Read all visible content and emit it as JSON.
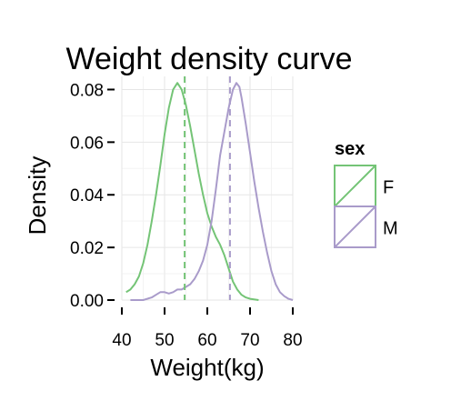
{
  "chart_data": {
    "type": "line",
    "title": "Weight density curve",
    "xlabel": "Weight(kg)",
    "ylabel": "Density",
    "xlim": [
      40,
      80
    ],
    "ylim": [
      0,
      0.085
    ],
    "x_ticks": [
      40,
      50,
      60,
      70,
      80
    ],
    "x_tick_labels": [
      "40",
      "50",
      "60",
      "70",
      "80"
    ],
    "y_ticks": [
      0.0,
      0.02,
      0.04,
      0.06,
      0.08
    ],
    "y_tick_labels": [
      "0.00",
      "0.02",
      "0.04",
      "0.06",
      "0.08"
    ],
    "grid": true,
    "legend": {
      "title": "sex",
      "placement": "right"
    },
    "series": [
      {
        "name": "F",
        "color": "#74c476",
        "mean": 54.7,
        "points": [
          [
            41,
            0.003
          ],
          [
            42,
            0.004
          ],
          [
            43,
            0.006
          ],
          [
            44,
            0.009
          ],
          [
            45,
            0.014
          ],
          [
            46,
            0.021
          ],
          [
            47,
            0.03
          ],
          [
            48,
            0.04
          ],
          [
            49,
            0.051
          ],
          [
            50,
            0.063
          ],
          [
            51,
            0.073
          ],
          [
            52,
            0.08
          ],
          [
            53,
            0.0825
          ],
          [
            54,
            0.08
          ],
          [
            55,
            0.074
          ],
          [
            56,
            0.066
          ],
          [
            57,
            0.057
          ],
          [
            58,
            0.048
          ],
          [
            59,
            0.04
          ],
          [
            60,
            0.033
          ],
          [
            61,
            0.028
          ],
          [
            62,
            0.024
          ],
          [
            63,
            0.021
          ],
          [
            64,
            0.017
          ],
          [
            65,
            0.012
          ],
          [
            66,
            0.007
          ],
          [
            67,
            0.004
          ],
          [
            68,
            0.002
          ],
          [
            69,
            0.001
          ],
          [
            70,
            0.0005
          ],
          [
            72,
            0.0
          ]
        ]
      },
      {
        "name": "M",
        "color": "#a99bca",
        "mean": 65.3,
        "points": [
          [
            42,
            0.0
          ],
          [
            45,
            0.0
          ],
          [
            47,
            0.001
          ],
          [
            48,
            0.002
          ],
          [
            49,
            0.003
          ],
          [
            50,
            0.003
          ],
          [
            51,
            0.0025
          ],
          [
            52,
            0.003
          ],
          [
            53,
            0.004
          ],
          [
            54,
            0.004
          ],
          [
            55,
            0.005
          ],
          [
            56,
            0.006
          ],
          [
            57,
            0.008
          ],
          [
            58,
            0.011
          ],
          [
            59,
            0.015
          ],
          [
            60,
            0.021
          ],
          [
            61,
            0.03
          ],
          [
            62,
            0.042
          ],
          [
            63,
            0.055
          ],
          [
            64,
            0.064
          ],
          [
            65,
            0.073
          ],
          [
            66,
            0.08
          ],
          [
            66.8,
            0.0825
          ],
          [
            67.5,
            0.081
          ],
          [
            68,
            0.077
          ],
          [
            69,
            0.067
          ],
          [
            70,
            0.056
          ],
          [
            71,
            0.045
          ],
          [
            72,
            0.035
          ],
          [
            73,
            0.026
          ],
          [
            74,
            0.018
          ],
          [
            75,
            0.011
          ],
          [
            76,
            0.006
          ],
          [
            77,
            0.003
          ],
          [
            78,
            0.0015
          ],
          [
            79,
            0.0005
          ],
          [
            80,
            0.0
          ]
        ]
      }
    ]
  }
}
